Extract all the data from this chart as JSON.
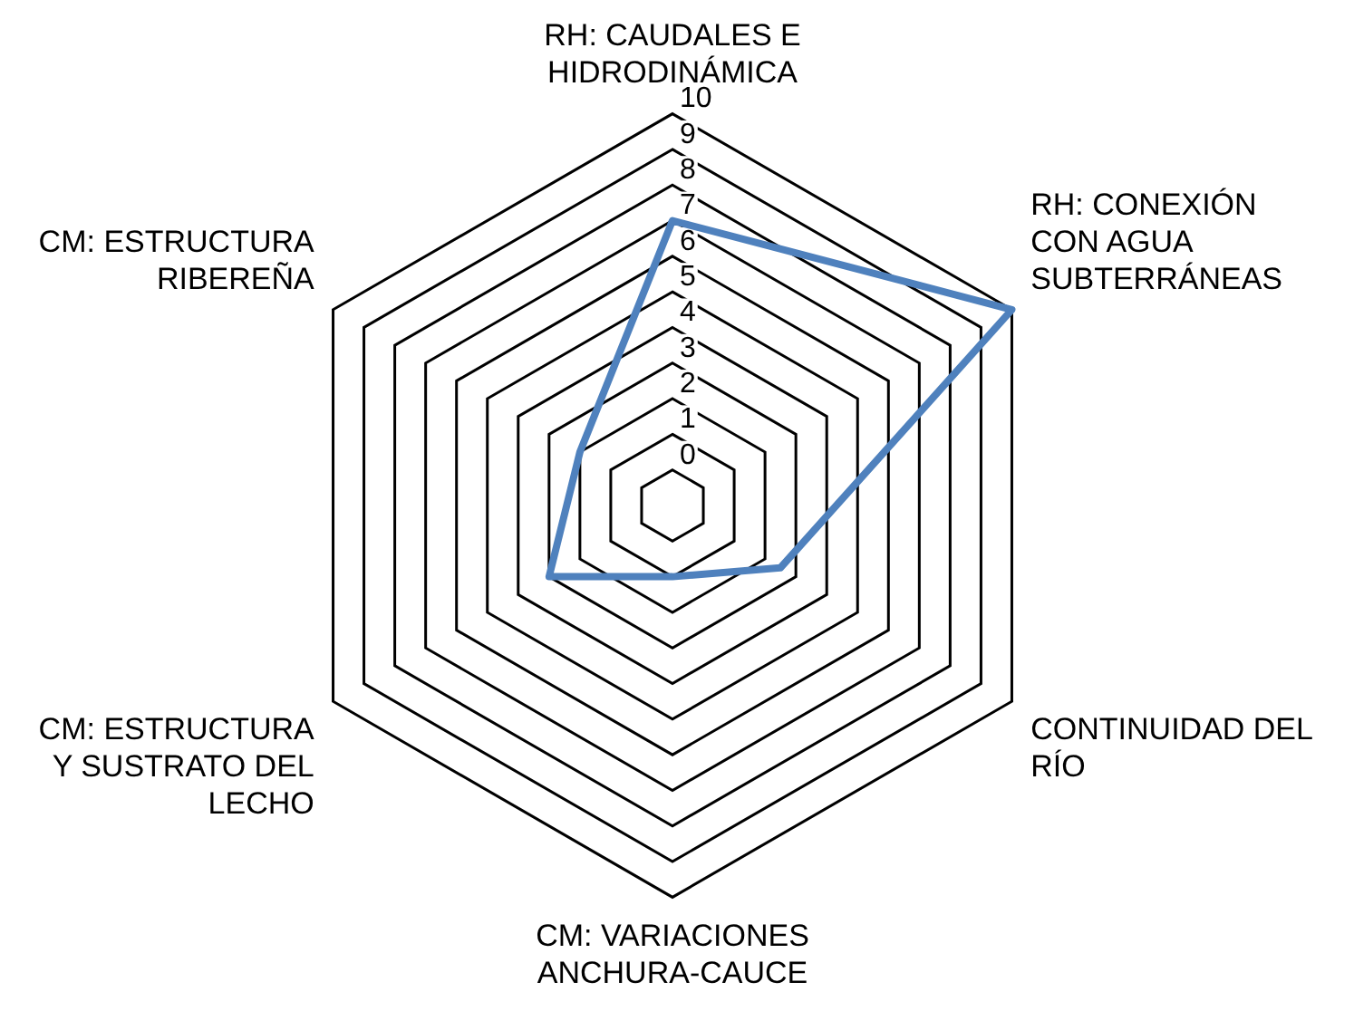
{
  "chart_data": {
    "type": "radar",
    "categories": [
      "RH: CAUDALES E HIDRODINÁMICA",
      "RH: CONEXIÓN CON AGUA SUBTERRÁNEAS",
      "CONTINUIDAD DEL RÍO",
      "CM: VARIACIONES ANCHURA-CAUCE",
      "CM: ESTRUCTURA Y SUSTRATO DEL LECHO",
      "CM: ESTRUCTURA RIBEREÑA"
    ],
    "series": [
      {
        "color": "#4f81bd",
        "values": [
          7,
          10,
          2.5,
          1,
          3,
          2
        ]
      }
    ],
    "ylim": [
      -1,
      10
    ],
    "yticks": [
      0,
      1,
      2,
      3,
      4,
      5,
      6,
      7,
      8,
      9,
      10
    ],
    "grid": true,
    "legend": false,
    "marker": "none",
    "line_style": "solid"
  }
}
